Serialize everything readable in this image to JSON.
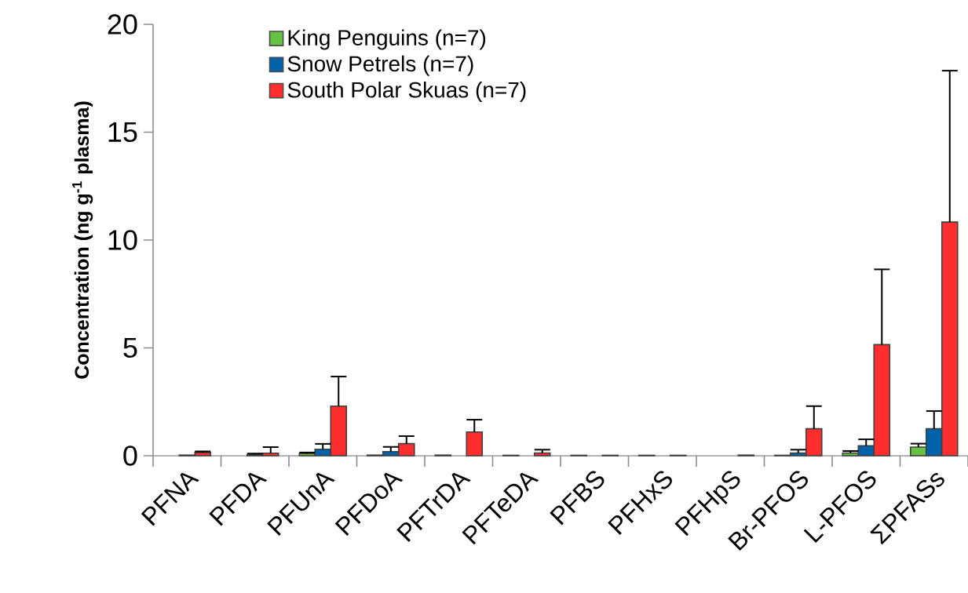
{
  "chart_data": {
    "type": "bar",
    "ylabel": "Concentration (ng g$^{-1}$ plasma)",
    "categories": [
      "PFNA",
      "PFDA",
      "PFUnA",
      "PFDoA",
      "PFTrDA",
      "PFTeDA",
      "PFBS",
      "PFHxS",
      "PFHpS",
      "Br-PFOS",
      "L-PFOS",
      "ΣPFASs"
    ],
    "series": [
      {
        "name": "King Penguins (n=7)",
        "color": "#66c244",
        "values": [
          null,
          null,
          0.1,
          0.03,
          0.03,
          0.02,
          0.02,
          0.02,
          null,
          0.02,
          0.13,
          0.4
        ],
        "errors": [
          null,
          null,
          [
            0.1,
            0.15
          ],
          null,
          null,
          null,
          null,
          null,
          null,
          null,
          [
            0.13,
            0.22
          ],
          [
            0.4,
            0.56
          ]
        ]
      },
      {
        "name": "Snow Petrels (n=7)",
        "color": "#0062a8",
        "values": [
          0.03,
          0.05,
          0.3,
          0.19,
          null,
          null,
          null,
          null,
          null,
          0.13,
          0.46,
          1.25
        ],
        "errors": [
          null,
          [
            0.05,
            0.1
          ],
          [
            0.3,
            0.55
          ],
          [
            0.19,
            0.41
          ],
          null,
          null,
          null,
          null,
          null,
          [
            0.13,
            0.28
          ],
          [
            0.46,
            0.76
          ],
          [
            1.25,
            2.07
          ]
        ]
      },
      {
        "name": "South Polar Skuas (n=7)",
        "color": "#ff2e2e",
        "values": [
          0.15,
          0.12,
          2.3,
          0.56,
          1.1,
          0.13,
          0.02,
          0.02,
          0.03,
          1.25,
          5.15,
          10.83
        ],
        "errors": [
          [
            0.15,
            0.2
          ],
          [
            0.12,
            0.4
          ],
          [
            2.3,
            3.67
          ],
          [
            0.56,
            0.91
          ],
          [
            1.1,
            1.67
          ],
          [
            0.13,
            0.28
          ],
          null,
          null,
          null,
          [
            1.25,
            2.3
          ],
          [
            5.15,
            8.64
          ],
          [
            10.83,
            17.85
          ]
        ]
      }
    ],
    "ylim": [
      0,
      20
    ],
    "yticks": [
      0,
      5,
      10,
      15,
      20
    ],
    "legend": "top"
  }
}
